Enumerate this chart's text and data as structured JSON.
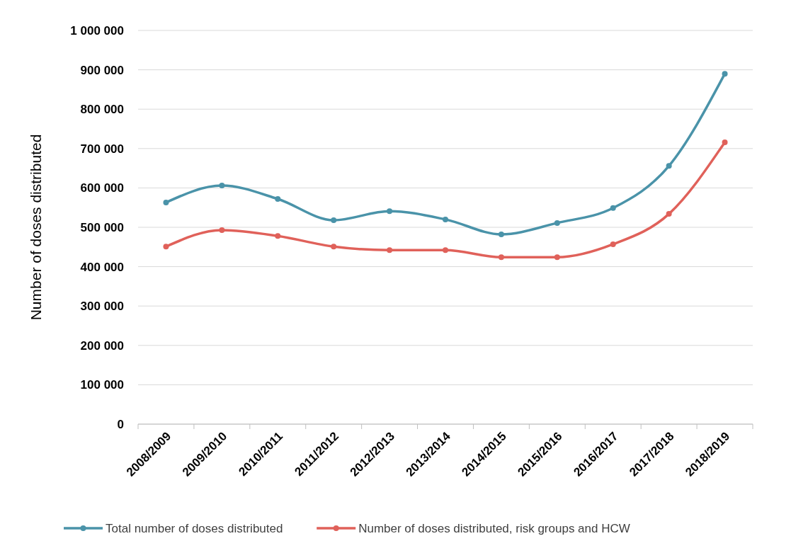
{
  "chart_data": {
    "type": "line",
    "ylabel": "Number of doses distributed",
    "categories": [
      "2008/2009",
      "2009/2010",
      "2010/2011",
      "2011/2012",
      "2012/2013",
      "2013/2014",
      "2014/2015",
      "2015/2016",
      "2016/2017",
      "2017/2018",
      "2018/2019"
    ],
    "series": [
      {
        "name": "Total number of doses distributed",
        "color": "#4a93a9",
        "values": [
          563000,
          606000,
          572000,
          518000,
          541000,
          520000,
          482000,
          511000,
          549000,
          656000,
          890000
        ]
      },
      {
        "name": "Number of doses distributed, risk groups and HCW",
        "color": "#e0615a",
        "values": [
          451000,
          493000,
          478000,
          451000,
          442000,
          442000,
          424000,
          424000,
          457000,
          534000,
          716000
        ]
      }
    ],
    "ylim": [
      0,
      1000000
    ],
    "yticks": [
      0,
      {
        "value": 100000,
        "label": "100 000"
      },
      {
        "value": 200000,
        "label": "200 000"
      },
      {
        "value": 300000,
        "label": "300 000"
      },
      {
        "value": 400000,
        "label": "400 000"
      },
      {
        "value": 500000,
        "label": "500 000"
      },
      {
        "value": 600000,
        "label": "600 000"
      },
      {
        "value": 700000,
        "label": "700 000"
      },
      {
        "value": 800000,
        "label": "800 000"
      },
      {
        "value": 900000,
        "label": "900 000"
      },
      {
        "value": 1000000,
        "label": "1 000 000"
      }
    ],
    "grid": "y",
    "legend": "bottom",
    "marker": "circle",
    "line_style": "solid"
  }
}
